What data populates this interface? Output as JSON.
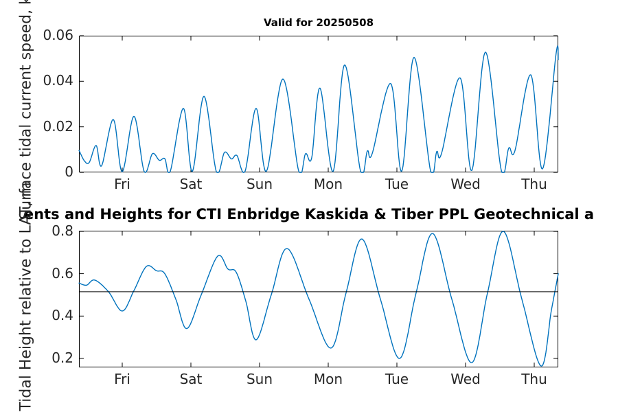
{
  "figure": {
    "background": "#ffffff",
    "suptitle": "ents and Heights for CTI Enbridge  Kaskida & Tiber PPL Geotechnical a",
    "title_color": "#000000",
    "tick_label_color": "#262626",
    "axis_color": "#000000"
  },
  "chart_data": [
    {
      "type": "line",
      "title": "Valid for 20250508",
      "ylabel": "Surface tidal current speed, kn",
      "xlabel": "",
      "grid": false,
      "legend": null,
      "x_unit": "days, 0 = Friday tick",
      "xlim": [
        -0.63,
        6.35
      ],
      "ylim": [
        0,
        0.06
      ],
      "xticks": [
        0,
        1,
        2,
        3,
        4,
        5,
        6
      ],
      "xtick_labels": [
        "Fri",
        "Sat",
        "Sun",
        "Mon",
        "Tue",
        "Wed",
        "Thu"
      ],
      "yticks": [
        0,
        0.02,
        0.04,
        0.06
      ],
      "ytick_labels": [
        "0",
        "0.02",
        "0.04",
        "0.06"
      ],
      "line_color": "#0072BD",
      "clamp_min": 0,
      "series": [
        {
          "name": "surface tidal current speed",
          "color": "#0072BD",
          "points": [
            [
              -0.63,
              0.0097
            ],
            [
              -0.55,
              0.005
            ],
            [
              -0.48,
              0.0044
            ],
            [
              -0.38,
              0.0118
            ],
            [
              -0.3,
              0.0029
            ],
            [
              -0.13,
              0.0232
            ],
            [
              0.0,
              0.0003
            ],
            [
              0.17,
              0.0246
            ],
            [
              0.32,
              0.0004
            ],
            [
              0.44,
              0.0082
            ],
            [
              0.54,
              0.0053
            ],
            [
              0.62,
              0.006
            ],
            [
              0.7,
              0.0005
            ],
            [
              0.89,
              0.0281
            ],
            [
              1.02,
              0.0004
            ],
            [
              1.19,
              0.0334
            ],
            [
              1.37,
              0.0004
            ],
            [
              1.49,
              0.0088
            ],
            [
              1.59,
              0.0059
            ],
            [
              1.67,
              0.0074
            ],
            [
              1.79,
              0.0006
            ],
            [
              1.95,
              0.0281
            ],
            [
              2.1,
              0.0005
            ],
            [
              2.34,
              0.041
            ],
            [
              2.57,
              0.0006
            ],
            [
              2.67,
              0.0082
            ],
            [
              2.76,
              0.0065
            ],
            [
              2.88,
              0.037
            ],
            [
              3.07,
              0.0004
            ],
            [
              3.24,
              0.0472
            ],
            [
              3.47,
              0.0006
            ],
            [
              3.57,
              0.0094
            ],
            [
              3.64,
              0.0082
            ],
            [
              3.91,
              0.039
            ],
            [
              4.07,
              0.0005
            ],
            [
              4.25,
              0.0505
            ],
            [
              4.49,
              0.0007
            ],
            [
              4.58,
              0.0091
            ],
            [
              4.65,
              0.0083
            ],
            [
              4.92,
              0.0415
            ],
            [
              5.09,
              0.0008
            ],
            [
              5.29,
              0.0528
            ],
            [
              5.52,
              0.0009
            ],
            [
              5.63,
              0.0107
            ],
            [
              5.72,
              0.0096
            ],
            [
              5.95,
              0.0428
            ],
            [
              6.12,
              0.0015
            ],
            [
              6.32,
              0.0525
            ],
            [
              6.35,
              0.0495
            ]
          ]
        }
      ]
    },
    {
      "type": "line",
      "title": "",
      "ylabel": "Tidal Height relative to LAT, m",
      "xlabel": "",
      "grid": false,
      "legend": null,
      "x_unit": "days, 0 = Friday tick",
      "xlim": [
        -0.63,
        6.35
      ],
      "ylim": [
        0.158,
        0.803
      ],
      "xticks": [
        0,
        1,
        2,
        3,
        4,
        5,
        6
      ],
      "xtick_labels": [
        "Fri",
        "Sat",
        "Sun",
        "Mon",
        "Tue",
        "Wed",
        "Thu"
      ],
      "yticks": [
        0.2,
        0.4,
        0.6,
        0.8
      ],
      "ytick_labels": [
        "0.2",
        "0.4",
        "0.6",
        "0.8"
      ],
      "line_color": "#0072BD",
      "clamp_min": null,
      "series": [
        {
          "name": "tidal height",
          "color": "#0072BD",
          "points": [
            [
              -0.63,
              0.556
            ],
            [
              -0.52,
              0.546
            ],
            [
              -0.4,
              0.57
            ],
            [
              -0.2,
              0.515
            ],
            [
              0.0,
              0.424
            ],
            [
              0.17,
              0.52
            ],
            [
              0.35,
              0.634
            ],
            [
              0.5,
              0.614
            ],
            [
              0.62,
              0.6
            ],
            [
              0.78,
              0.48
            ],
            [
              0.94,
              0.341
            ],
            [
              1.15,
              0.5
            ],
            [
              1.39,
              0.683
            ],
            [
              1.54,
              0.622
            ],
            [
              1.66,
              0.607
            ],
            [
              1.8,
              0.47
            ],
            [
              1.95,
              0.288
            ],
            [
              2.17,
              0.5
            ],
            [
              2.4,
              0.719
            ],
            [
              2.72,
              0.48
            ],
            [
              3.04,
              0.249
            ],
            [
              3.26,
              0.51
            ],
            [
              3.49,
              0.764
            ],
            [
              3.76,
              0.48
            ],
            [
              4.04,
              0.2
            ],
            [
              4.28,
              0.51
            ],
            [
              4.52,
              0.79
            ],
            [
              4.8,
              0.48
            ],
            [
              5.09,
              0.18
            ],
            [
              5.32,
              0.51
            ],
            [
              5.55,
              0.8
            ],
            [
              5.82,
              0.48
            ],
            [
              6.1,
              0.164
            ],
            [
              6.25,
              0.428
            ],
            [
              6.35,
              0.6
            ]
          ]
        },
        {
          "name": "mean level line",
          "type": "hline",
          "color": "#000000",
          "y": 0.515
        }
      ]
    }
  ]
}
